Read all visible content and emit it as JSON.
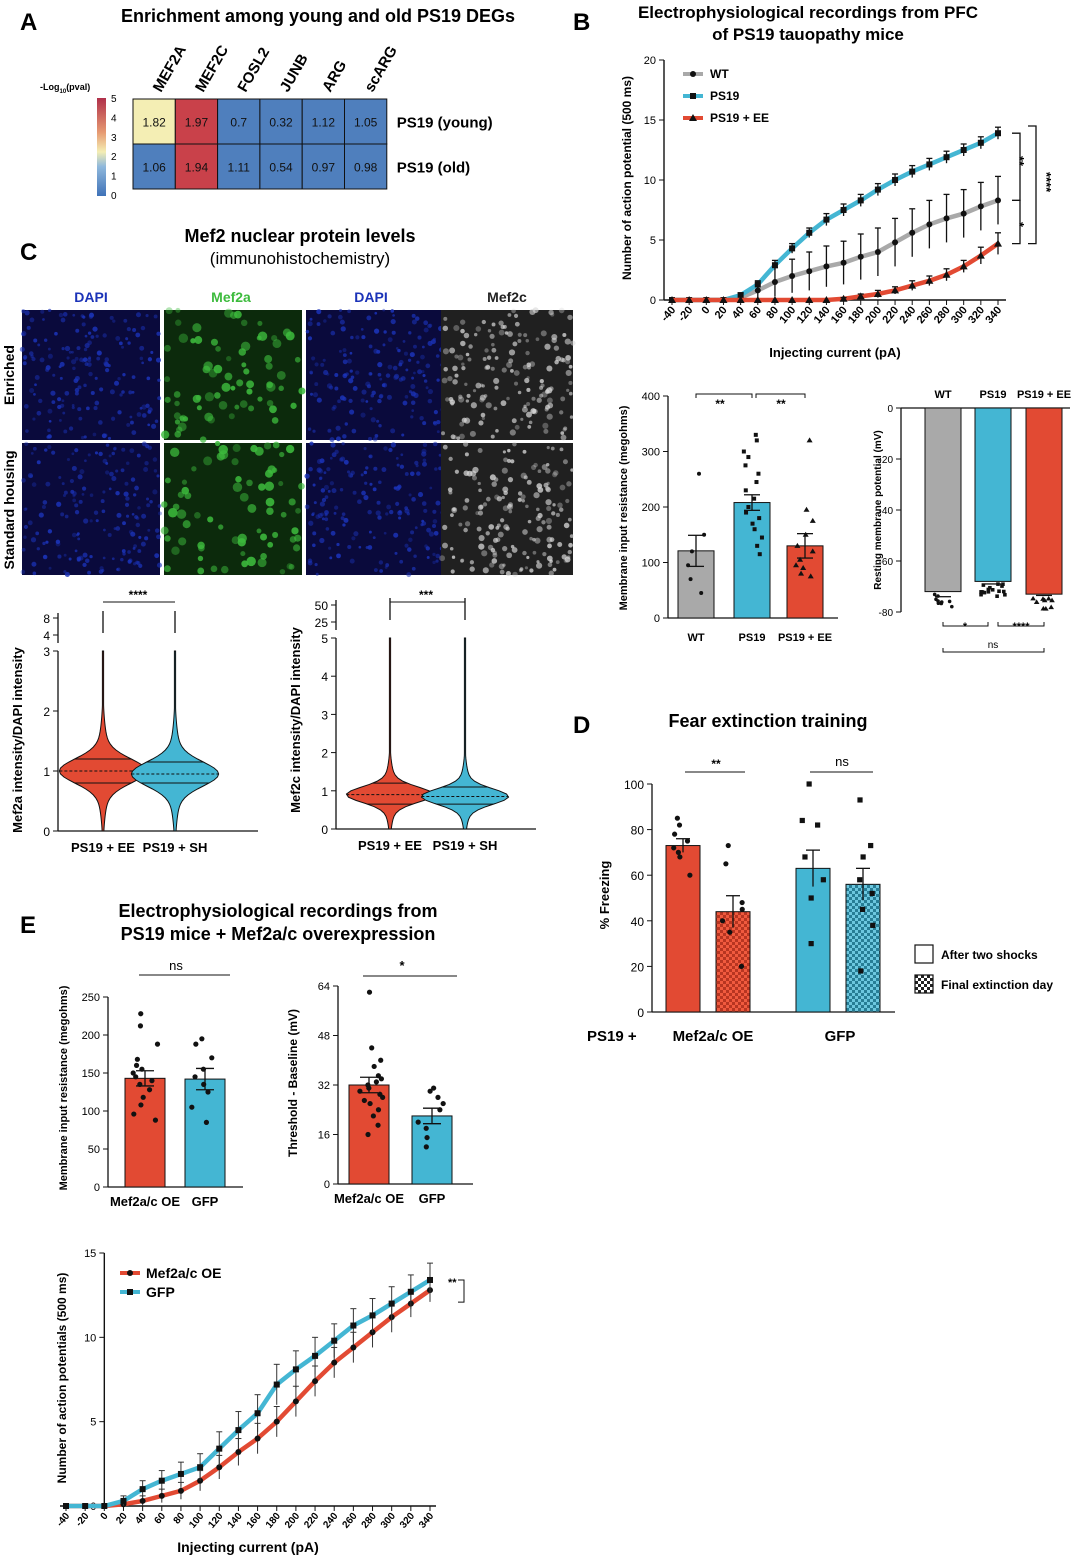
{
  "colors": {
    "wt": "#a9a9a9",
    "ps19": "#44b6d3",
    "ee": "#e24a33",
    "heat_low": "#4f7fbd",
    "heat_high": "#c9414a",
    "heat_mid": "#f4eeb4",
    "dapi": "#1b33b8",
    "mef2a": "#3dbb3d",
    "mef2c": "#d8d8d8"
  },
  "panelA": {
    "letter": "A",
    "title": "Enrichment among young and old PS19 DEGs",
    "scale_label": "-Log",
    "scale_sub": "10",
    "scale_suffix": "(pval)",
    "scale_ticks": [
      "5",
      "4",
      "3",
      "2",
      "1",
      "0"
    ],
    "columns": [
      "MEF2A",
      "MEF2C",
      "FOSL2",
      "JUNB",
      "ARG",
      "scARG"
    ],
    "rows": [
      {
        "label": "PS19 (young)",
        "values": [
          "1.82",
          "1.97",
          "0.7",
          "0.32",
          "1.12",
          "1.05"
        ],
        "colors": [
          "#f4eeb4",
          "#c9414a",
          "#4f7fbd",
          "#4f7fbd",
          "#4f7fbd",
          "#4f7fbd"
        ]
      },
      {
        "label": "PS19 (old)",
        "values": [
          "1.06",
          "1.94",
          "1.11",
          "0.54",
          "0.97",
          "0.98"
        ],
        "colors": [
          "#4f7fbd",
          "#c9414a",
          "#4f7fbd",
          "#4f7fbd",
          "#4f7fbd",
          "#4f7fbd"
        ]
      }
    ]
  },
  "panelB": {
    "letter": "B",
    "title_line1": "Electrophysiological recordings from PFC",
    "title_line2": "of PS19 tauopathy mice",
    "ylabel": "Number of action potential (500 ms)",
    "xlabel": "Injecting current (pA)",
    "sig_top": "**",
    "sig_bottom": "*",
    "sig_outer": "****"
  },
  "panelBbar1": {
    "ylabel": "Membrane input resistance (megohms)",
    "sig1": "**",
    "sig2": "**"
  },
  "panelBbar2": {
    "ylabel": "Resting membrane potential (mV)",
    "sig1": "*",
    "sig2": "****",
    "sig3": "ns"
  },
  "panelC": {
    "letter": "C",
    "title": "Mef2 nuclear protein levels",
    "subtitle": "(immunohistochemistry)",
    "channels": [
      "DAPI",
      "Mef2a",
      "DAPI",
      "Mef2c"
    ],
    "row_labels": [
      "Enriched",
      "Standard housing"
    ],
    "violin1": {
      "ylabel": "Mef2a intensity/DAPI intensity",
      "sig": "****"
    },
    "violin2": {
      "ylabel": "Mef2c intensity/DAPI intensity",
      "sig": "***"
    }
  },
  "panelD": {
    "letter": "D",
    "title": "Fear extinction training",
    "ylabel": "% Freezing",
    "group_prefix": "PS19 +",
    "groups": [
      "Mef2a/c OE",
      "GFP"
    ],
    "sig1": "**",
    "sig2": "ns",
    "legend": [
      "After two shocks",
      "Final extinction day"
    ]
  },
  "panelE": {
    "letter": "E",
    "title_line1": "Electrophysiological recordings from",
    "title_line2": "PS19 mice + Mef2a/c overexpression",
    "bar1": {
      "ylabel": "Membrane input resistance (megohms)",
      "sig": "ns"
    },
    "bar2": {
      "ylabel": "Threshold - Baseline (mV)",
      "sig": "*"
    },
    "line": {
      "ylabel": "Number of action potentials (500 ms)",
      "xlabel": "Injecting current (pA)",
      "sig": "**"
    }
  },
  "chart_data": [
    {
      "type": "line",
      "id": "B-line",
      "x": [
        -40,
        -20,
        0,
        20,
        40,
        60,
        80,
        100,
        120,
        140,
        160,
        180,
        200,
        220,
        240,
        260,
        280,
        300,
        320,
        340
      ],
      "ylim": [
        0,
        20
      ],
      "yticks": [
        0,
        5,
        10,
        15,
        20
      ],
      "series": [
        {
          "name": "WT",
          "color": "#a9a9a9",
          "marker": "circle",
          "values": [
            0,
            0,
            0,
            0,
            0.2,
            0.8,
            1.5,
            2,
            2.4,
            2.8,
            3.1,
            3.6,
            4,
            4.8,
            5.6,
            6.3,
            6.8,
            7.2,
            7.8,
            8.3
          ],
          "err": [
            0,
            0,
            0,
            0,
            0.2,
            0.6,
            1.2,
            1.4,
            1.6,
            1.7,
            1.8,
            1.9,
            2,
            2,
            2,
            2,
            2,
            2,
            2,
            2
          ]
        },
        {
          "name": "PS19",
          "color": "#44b6d3",
          "marker": "square",
          "values": [
            0,
            0,
            0,
            0,
            0.4,
            1.3,
            2.9,
            4.3,
            5.6,
            6.7,
            7.5,
            8.3,
            9.2,
            10,
            10.7,
            11.3,
            11.9,
            12.5,
            13.1,
            13.9
          ],
          "err": [
            0,
            0,
            0,
            0,
            0.2,
            0.3,
            0.4,
            0.4,
            0.4,
            0.5,
            0.5,
            0.5,
            0.5,
            0.5,
            0.5,
            0.5,
            0.5,
            0.5,
            0.5,
            0.5
          ]
        },
        {
          "name": "PS19 + EE",
          "color": "#e24a33",
          "marker": "triangle",
          "values": [
            0,
            0,
            0,
            0,
            0,
            0,
            0,
            0,
            0,
            0,
            0.1,
            0.3,
            0.5,
            0.8,
            1.2,
            1.6,
            2.1,
            2.8,
            3.7,
            4.7
          ],
          "err": [
            0,
            0,
            0,
            0,
            0,
            0,
            0,
            0,
            0,
            0,
            0.1,
            0.2,
            0.3,
            0.3,
            0.4,
            0.4,
            0.5,
            0.5,
            0.7,
            0.9
          ]
        }
      ]
    },
    {
      "type": "bar",
      "id": "B-resistance",
      "categories": [
        "WT",
        "PS19",
        "PS19 + EE"
      ],
      "values": [
        121,
        208,
        130
      ],
      "err": [
        28,
        14,
        22
      ],
      "ylim": [
        0,
        400
      ],
      "yticks": [
        0,
        100,
        200,
        300,
        400
      ],
      "points": [
        [
          260,
          150,
          120,
          95,
          70,
          45
        ],
        [
          330,
          320,
          300,
          290,
          275,
          260,
          245,
          230,
          215,
          200,
          190,
          180,
          170,
          160,
          145,
          130,
          115
        ],
        [
          320,
          195,
          175,
          150,
          130,
          120,
          105,
          95,
          90,
          80,
          75
        ]
      ]
    },
    {
      "type": "bar",
      "id": "B-resting",
      "categories": [
        "WT",
        "PS19",
        "PS19 + EE"
      ],
      "values": [
        -72,
        -68,
        -73
      ],
      "err": [
        2,
        1,
        0.5
      ],
      "ylim": [
        -80,
        0
      ],
      "yticks": [
        0,
        -20,
        -40,
        -60,
        -80
      ]
    },
    {
      "type": "violin",
      "id": "C-mef2a",
      "categories": [
        "PS19 + EE",
        "PS19 + SH"
      ],
      "ylim": [
        0,
        3
      ],
      "yticks": [
        0,
        1,
        2,
        3
      ],
      "ybreak_ticks": [
        4,
        8
      ],
      "median": [
        1,
        0.95
      ],
      "q1": [
        0.8,
        0.8
      ],
      "q3": [
        1.2,
        1.15
      ]
    },
    {
      "type": "violin",
      "id": "C-mef2c",
      "categories": [
        "PS19 + EE",
        "PS19 + SH"
      ],
      "ylim": [
        0,
        5
      ],
      "yticks": [
        0,
        1,
        2,
        3,
        4,
        5
      ],
      "ybreak_ticks": [
        25,
        50
      ],
      "median": [
        0.9,
        0.85
      ],
      "q1": [
        0.65,
        0.65
      ],
      "q3": [
        1.2,
        1.1
      ]
    },
    {
      "type": "bar",
      "id": "D-freezing",
      "categories": [
        "Mef2a/c OE",
        "GFP"
      ],
      "series": [
        {
          "name": "After two shocks",
          "values": [
            73,
            63
          ],
          "err": [
            3,
            8
          ]
        },
        {
          "name": "Final extinction day",
          "values": [
            44,
            56
          ],
          "err": [
            7,
            7
          ]
        }
      ],
      "ylim": [
        0,
        100
      ],
      "yticks": [
        0,
        20,
        40,
        60,
        80,
        100
      ],
      "points": [
        [
          85,
          82,
          78,
          75,
          72,
          70,
          68,
          60
        ],
        [
          73,
          65,
          48,
          45,
          40,
          35,
          20
        ],
        [
          100,
          84,
          82,
          68,
          58,
          50,
          30
        ],
        [
          93,
          73,
          68,
          58,
          52,
          45,
          38,
          18
        ]
      ]
    },
    {
      "type": "bar",
      "id": "E-resistance",
      "categories": [
        "Mef2a/c OE",
        "GFP"
      ],
      "values": [
        143,
        142
      ],
      "err": [
        10,
        14
      ],
      "ylim": [
        0,
        250
      ],
      "yticks": [
        0,
        50,
        100,
        150,
        200,
        250
      ],
      "points": [
        [
          228,
          212,
          188,
          168,
          160,
          155,
          150,
          145,
          140,
          135,
          128,
          118,
          108,
          96,
          88
        ],
        [
          195,
          188,
          170,
          155,
          145,
          135,
          125,
          105,
          85
        ]
      ]
    },
    {
      "type": "bar",
      "id": "E-threshold",
      "categories": [
        "Mef2a/c OE",
        "GFP"
      ],
      "values": [
        32,
        22
      ],
      "err": [
        2.5,
        2.5
      ],
      "ylim": [
        0,
        64
      ],
      "yticks": [
        0,
        16,
        32,
        48,
        64
      ],
      "points": [
        [
          62,
          44,
          40,
          38,
          35,
          34,
          33,
          32,
          31,
          30,
          29,
          28,
          27,
          26,
          24,
          22,
          19,
          16
        ],
        [
          31,
          30,
          28,
          26,
          24,
          20,
          18,
          15,
          12
        ]
      ]
    },
    {
      "type": "line",
      "id": "E-line",
      "x": [
        -40,
        -20,
        0,
        20,
        40,
        60,
        80,
        100,
        120,
        140,
        160,
        180,
        200,
        220,
        240,
        260,
        280,
        300,
        320,
        340
      ],
      "ylim": [
        0,
        15
      ],
      "yticks": [
        0,
        5,
        10,
        15
      ],
      "series": [
        {
          "name": "Mef2a/c OE",
          "color": "#e24a33",
          "marker": "circle",
          "values": [
            0,
            0,
            0,
            0.1,
            0.3,
            0.6,
            0.9,
            1.5,
            2.3,
            3.2,
            4,
            5,
            6.2,
            7.4,
            8.5,
            9.4,
            10.3,
            11.2,
            12,
            12.8
          ],
          "err": [
            0,
            0,
            0,
            0.1,
            0.3,
            0.4,
            0.5,
            0.6,
            0.7,
            0.8,
            0.9,
            0.9,
            0.9,
            0.9,
            0.9,
            0.9,
            0.9,
            0.9,
            0.8,
            0.7
          ]
        },
        {
          "name": "GFP",
          "color": "#44b6d3",
          "marker": "square",
          "values": [
            0,
            0,
            0,
            0.3,
            1,
            1.5,
            1.9,
            2.3,
            3.4,
            4.5,
            5.5,
            7.2,
            8.1,
            8.9,
            9.8,
            10.7,
            11.3,
            12,
            12.7,
            13.4
          ],
          "err": [
            0,
            0,
            0,
            0.3,
            0.5,
            0.6,
            0.7,
            0.8,
            1,
            1.1,
            1.1,
            1.2,
            1.1,
            1.1,
            1,
            1,
            1,
            1,
            1,
            1
          ]
        }
      ]
    }
  ]
}
